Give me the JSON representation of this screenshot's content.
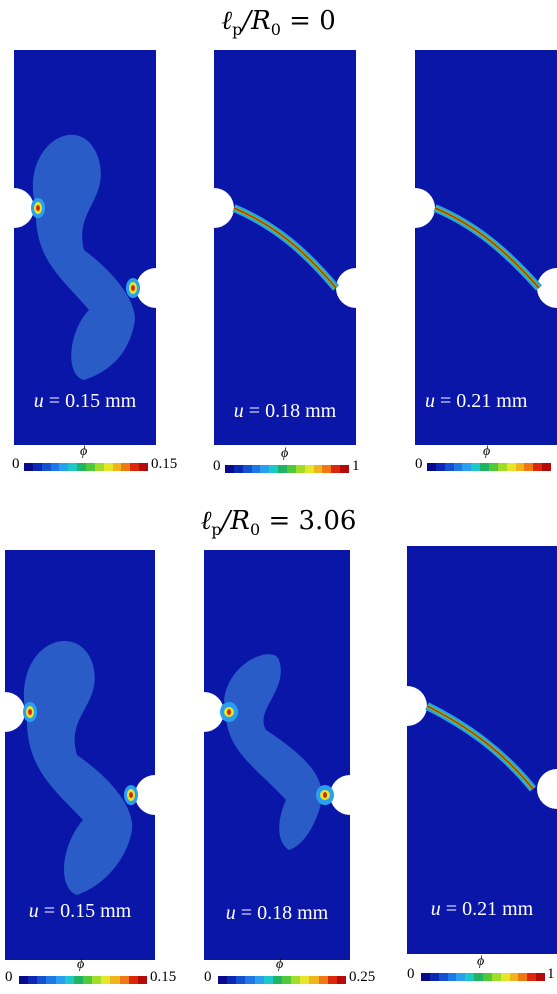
{
  "rows": [
    {
      "title_main": "ℓ",
      "title_sub": "p",
      "title_rest": "/R",
      "title_sub2": "0",
      "title_eq": " = 0",
      "panels": [
        {
          "label_var": "u",
          "label_val": " = 0.15 mm",
          "cbar_min": "0",
          "cbar_max": "0.15",
          "cbar_symbol": "ϕ"
        },
        {
          "label_var": "u",
          "label_val": " = 0.18 mm",
          "cbar_min": "0",
          "cbar_max": "1",
          "cbar_symbol": "ϕ"
        },
        {
          "label_var": "u",
          "label_val": " = 0.21 mm",
          "cbar_min": "0",
          "cbar_max": "",
          "cbar_symbol": "ϕ"
        }
      ]
    },
    {
      "title_main": "ℓ",
      "title_sub": "p",
      "title_rest": "/R",
      "title_sub2": "0",
      "title_eq": " = 3.06",
      "panels": [
        {
          "label_var": "u",
          "label_val": " = 0.15 mm",
          "cbar_min": "0",
          "cbar_max": "0.15",
          "cbar_symbol": "ϕ"
        },
        {
          "label_var": "u",
          "label_val": " = 0.18 mm",
          "cbar_min": "0",
          "cbar_max": "0.25",
          "cbar_symbol": "ϕ"
        },
        {
          "label_var": "u",
          "label_val": " = 0.21 mm",
          "cbar_min": "0",
          "cbar_max": "1",
          "cbar_symbol": "ϕ"
        }
      ]
    }
  ],
  "colors": {
    "background_field": "#0a16a8",
    "lobe": "#2a5cc8",
    "crack_outer": "#2f9be0",
    "crack_mid": "#3cc06a",
    "crack_core": "#e01c10",
    "colormap": [
      "#0a0a8c",
      "#0a28b4",
      "#1450d2",
      "#1e78e6",
      "#28a0f0",
      "#1ec8c8",
      "#1eb464",
      "#50c83c",
      "#a0dc28",
      "#e6e628",
      "#f0b41e",
      "#f07814",
      "#dc280a",
      "#b40a0a"
    ]
  }
}
